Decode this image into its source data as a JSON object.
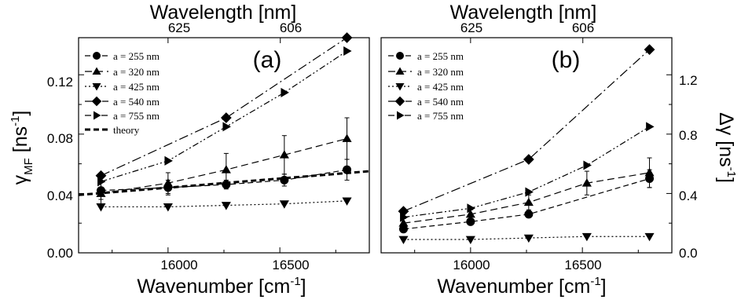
{
  "chart_data": [
    {
      "type": "line",
      "panel_label": "(a)",
      "xlabel": "Wavenumber [cm",
      "xlabel_sup": "-1",
      "xlabel_tail": "]",
      "x2label": "Wavelength [nm]",
      "ylabel": "γ",
      "ylabel_sub": "MF",
      "ylabel_tail": " [ns",
      "ylabel_sup": "-1",
      "ylabel_tail2": "]",
      "xlim": [
        15600,
        16900
      ],
      "ylim": [
        0.0,
        0.145
      ],
      "xticks": [
        16000,
        16500
      ],
      "xtick_labels": [
        "16000",
        "16500"
      ],
      "yticks": [
        0.0,
        0.04,
        0.08,
        0.12
      ],
      "ytick_labels": [
        "0.00",
        "0.04",
        "0.08",
        "0.12"
      ],
      "x2_ticks": [
        {
          "x": 16000,
          "label": "625"
        },
        {
          "x": 16502,
          "label": "606"
        }
      ],
      "legend_position": "top-left",
      "series": [
        {
          "name": "a = 255 nm",
          "marker": "circle",
          "dash": "7,4",
          "x": [
            15700,
            16000,
            16260,
            16520,
            16800
          ],
          "y": [
            0.042,
            0.044,
            0.046,
            0.049,
            0.056
          ],
          "err": [
            0.006,
            0.005,
            0.003,
            0.004,
            0.007
          ]
        },
        {
          "name": "a = 320 nm",
          "marker": "triangle-up",
          "dash": "9,5",
          "x": [
            15700,
            16000,
            16260,
            16520,
            16800
          ],
          "y": [
            0.04,
            0.047,
            0.056,
            0.066,
            0.077
          ],
          "err": [
            0.008,
            0.007,
            0.011,
            0.013,
            0.014
          ]
        },
        {
          "name": "a = 425 nm",
          "marker": "triangle-down",
          "dash": "2,3",
          "x": [
            15700,
            16000,
            16260,
            16520,
            16800
          ],
          "y": [
            0.031,
            0.031,
            0.032,
            0.033,
            0.035
          ]
        },
        {
          "name": "a = 540 nm",
          "marker": "diamond",
          "dash": "12,4,2,4",
          "x": [
            15700,
            16260,
            16800
          ],
          "y": [
            0.052,
            0.091,
            0.145
          ]
        },
        {
          "name": "a = 755 nm",
          "marker": "triangle-right",
          "dash": "8,3,2,3,2,3",
          "x": [
            15700,
            16000,
            16260,
            16520,
            16800
          ],
          "y": [
            0.048,
            0.062,
            0.085,
            0.108,
            0.136
          ]
        },
        {
          "name": "theory",
          "marker": "none",
          "dash": "7,4",
          "thick": true,
          "x": [
            15600,
            16900
          ],
          "y": [
            0.039,
            0.055
          ]
        }
      ]
    },
    {
      "type": "line",
      "panel_label": "(b)",
      "xlabel": "Wavenumber [cm",
      "xlabel_sup": "-1",
      "xlabel_tail": "]",
      "x2label": "Wavelength [nm]",
      "ylabel": "Δγ [ns",
      "ylabel_sup": "-1",
      "ylabel_tail": "]",
      "xlim": [
        15600,
        16900
      ],
      "ylim": [
        0.0,
        1.45
      ],
      "xticks": [
        16000,
        16500
      ],
      "xtick_labels": [
        "16000",
        "16500"
      ],
      "yticks": [
        0.0,
        0.4,
        0.8,
        1.2
      ],
      "ytick_labels": [
        "0.0",
        "0.4",
        "0.8",
        "1.2"
      ],
      "x2_ticks": [
        {
          "x": 16000,
          "label": "625"
        },
        {
          "x": 16502,
          "label": "606"
        }
      ],
      "legend_position": "top-left",
      "series": [
        {
          "name": "a = 255 nm",
          "marker": "circle",
          "dash": "7,4",
          "x": [
            15700,
            16000,
            16260,
            16800
          ],
          "y": [
            0.16,
            0.21,
            0.26,
            0.5
          ],
          "err": [
            0.02,
            0.02,
            0.02,
            0.06
          ]
        },
        {
          "name": "a = 320 nm",
          "marker": "triangle-up",
          "dash": "9,5",
          "x": [
            15700,
            16000,
            16260,
            16520,
            16800
          ],
          "y": [
            0.2,
            0.26,
            0.34,
            0.47,
            0.54
          ],
          "err": [
            0.03,
            0.03,
            0.05,
            0.08,
            0.1
          ]
        },
        {
          "name": "a = 425 nm",
          "marker": "triangle-down",
          "dash": "2,3",
          "x": [
            15700,
            16000,
            16260,
            16520,
            16800
          ],
          "y": [
            0.09,
            0.09,
            0.1,
            0.11,
            0.11
          ]
        },
        {
          "name": "a = 540 nm",
          "marker": "diamond",
          "dash": "12,4,2,4",
          "x": [
            15700,
            16260,
            16800
          ],
          "y": [
            0.28,
            0.63,
            1.37
          ]
        },
        {
          "name": "a = 755 nm",
          "marker": "triangle-right",
          "dash": "8,3,2,3,2,3",
          "x": [
            15700,
            16000,
            16260,
            16520,
            16800
          ],
          "y": [
            0.24,
            0.3,
            0.41,
            0.59,
            0.85
          ]
        }
      ]
    }
  ]
}
